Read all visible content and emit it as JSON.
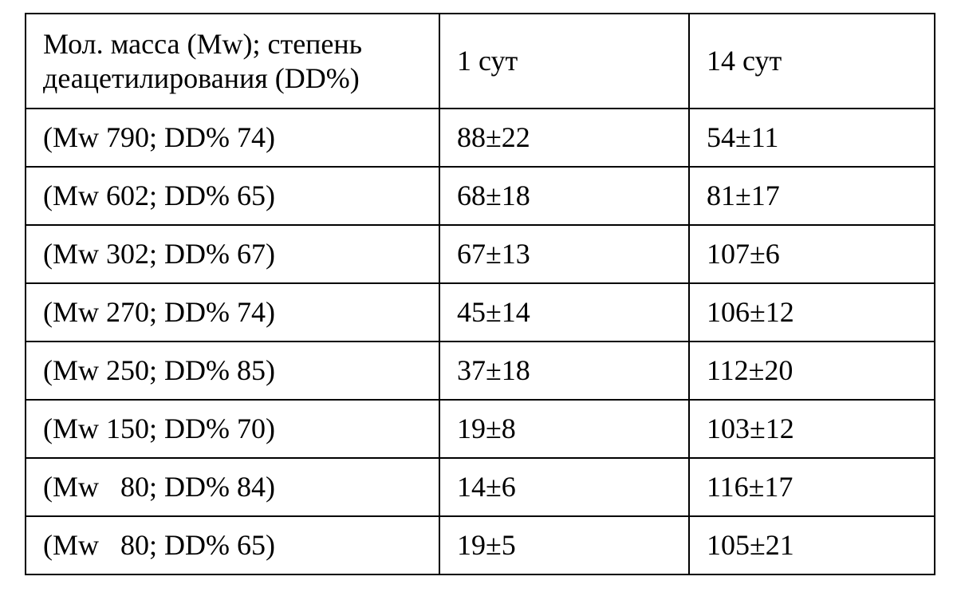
{
  "table": {
    "columns": [
      {
        "label": "Мол. масса (Mw); степень деацетилирования (DD%)"
      },
      {
        "label": "1 сут"
      },
      {
        "label": "14 сут"
      }
    ],
    "rows": [
      {
        "sample": "(Mw 790; DD% 74)",
        "day1": "88±22",
        "day14": "54±11"
      },
      {
        "sample": "(Mw 602; DD% 65)",
        "day1": "68±18",
        "day14": "81±17"
      },
      {
        "sample": "(Mw 302; DD% 67)",
        "day1": "67±13",
        "day14": "107±6"
      },
      {
        "sample": "(Mw 270; DD% 74)",
        "day1": "45±14",
        "day14": "106±12"
      },
      {
        "sample": "(Mw 250; DD% 85)",
        "day1": "37±18",
        "day14": "112±20"
      },
      {
        "sample": "(Mw 150; DD% 70)",
        "day1": "19±8",
        "day14": "103±12"
      },
      {
        "sample": "(Mw   80; DD% 84)",
        "day1": "14±6",
        "day14": "116±17"
      },
      {
        "sample": "(Mw   80; DD% 65)",
        "day1": "19±5",
        "day14": "105±21"
      }
    ]
  },
  "colors": {
    "border": "#000000",
    "background": "#ffffff",
    "text": "#000000"
  },
  "chart_data": {
    "type": "table",
    "title": "",
    "columns": [
      "Мол. масса (Mw); степень деацетилирования (DD%)",
      "1 сут",
      "14 сут"
    ],
    "rows": [
      [
        "(Mw 790; DD% 74)",
        "88±22",
        "54±11"
      ],
      [
        "(Mw 602; DD% 65)",
        "68±18",
        "81±17"
      ],
      [
        "(Mw 302; DD% 67)",
        "67±13",
        "107±6"
      ],
      [
        "(Mw 270; DD% 74)",
        "45±14",
        "106±12"
      ],
      [
        "(Mw 250; DD% 85)",
        "37±18",
        "112±20"
      ],
      [
        "(Mw 150; DD% 70)",
        "19±8",
        "103±12"
      ],
      [
        "(Mw 80; DD% 84)",
        "14±6",
        "116±17"
      ],
      [
        "(Mw 80; DD% 65)",
        "19±5",
        "105±21"
      ]
    ]
  }
}
